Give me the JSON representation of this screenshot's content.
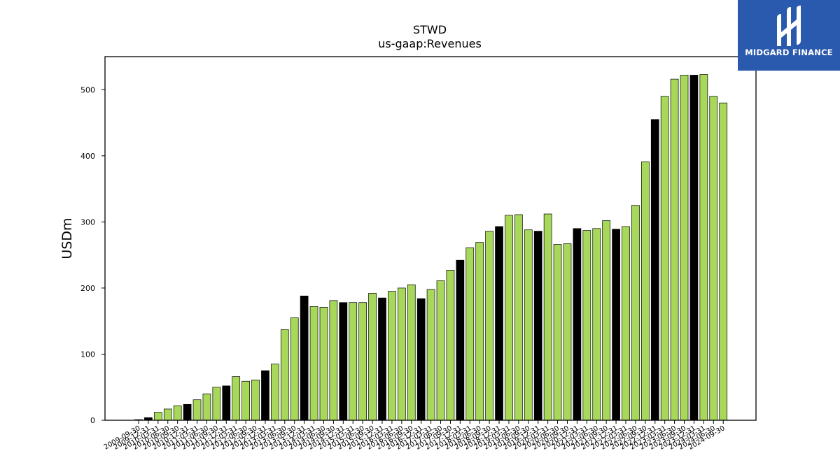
{
  "chart_data": {
    "type": "bar",
    "title": "STWD",
    "subtitle": "us-gaap:Revenues",
    "xlabel": "",
    "ylabel": "USDm",
    "ylim": [
      0,
      550
    ],
    "yticks": [
      0,
      100,
      200,
      300,
      400,
      500
    ],
    "grid": false,
    "colors": {
      "quarterly": "#a8d85a",
      "annual": "#000000",
      "edge": "#000000"
    },
    "categories": [
      "2009-09-30",
      "2009-12-31",
      "2010-03-31",
      "2010-06-30",
      "2010-09-30",
      "2010-12-31",
      "2011-03-31",
      "2011-06-30",
      "2011-09-30",
      "2011-12-31",
      "2012-03-31",
      "2012-06-30",
      "2012-09-30",
      "2012-12-31",
      "2013-03-31",
      "2013-06-30",
      "2013-09-30",
      "2013-12-31",
      "2014-03-31",
      "2014-06-30",
      "2014-09-30",
      "2014-12-31",
      "2015-03-31",
      "2015-06-30",
      "2015-09-30",
      "2015-12-31",
      "2016-03-31",
      "2016-06-30",
      "2016-09-30",
      "2016-12-31",
      "2017-03-31",
      "2017-06-30",
      "2017-09-30",
      "2017-12-31",
      "2018-03-31",
      "2018-06-30",
      "2018-09-30",
      "2018-12-31",
      "2019-03-31",
      "2019-06-30",
      "2019-09-30",
      "2019-12-31",
      "2020-03-31",
      "2020-06-30",
      "2020-09-30",
      "2020-12-31",
      "2021-03-31",
      "2021-06-30",
      "2021-09-30",
      "2021-12-31",
      "2022-03-31",
      "2022-06-30",
      "2022-09-30",
      "2022-12-31",
      "2023-03-31",
      "2023-06-30",
      "2023-09-30",
      "2023-12-31",
      "2024-03-31",
      "2024-06-30",
      "2024-09-30"
    ],
    "values": [
      1,
      4,
      12,
      17,
      22,
      24,
      31,
      40,
      50,
      52,
      66,
      59,
      61,
      75,
      85,
      137,
      155,
      188,
      172,
      171,
      181,
      178,
      178,
      178,
      192,
      185,
      195,
      200,
      205,
      184,
      198,
      211,
      227,
      242,
      261,
      269,
      286,
      293,
      310,
      311,
      288,
      286,
      312,
      266,
      267,
      290,
      287,
      290,
      302,
      289,
      293,
      325,
      391,
      455,
      490,
      516,
      522,
      522,
      523,
      490,
      480
    ],
    "annual": [
      false,
      true,
      false,
      false,
      false,
      true,
      false,
      false,
      false,
      true,
      false,
      false,
      false,
      true,
      false,
      false,
      false,
      true,
      false,
      false,
      false,
      true,
      false,
      false,
      false,
      true,
      false,
      false,
      false,
      true,
      false,
      false,
      false,
      true,
      false,
      false,
      false,
      true,
      false,
      false,
      false,
      true,
      false,
      false,
      false,
      true,
      false,
      false,
      false,
      true,
      false,
      false,
      false,
      true,
      false,
      false,
      false,
      true,
      false,
      false,
      false
    ]
  },
  "brand": {
    "name": "MIDGARD FINANCE",
    "color": "#2a5aad"
  }
}
